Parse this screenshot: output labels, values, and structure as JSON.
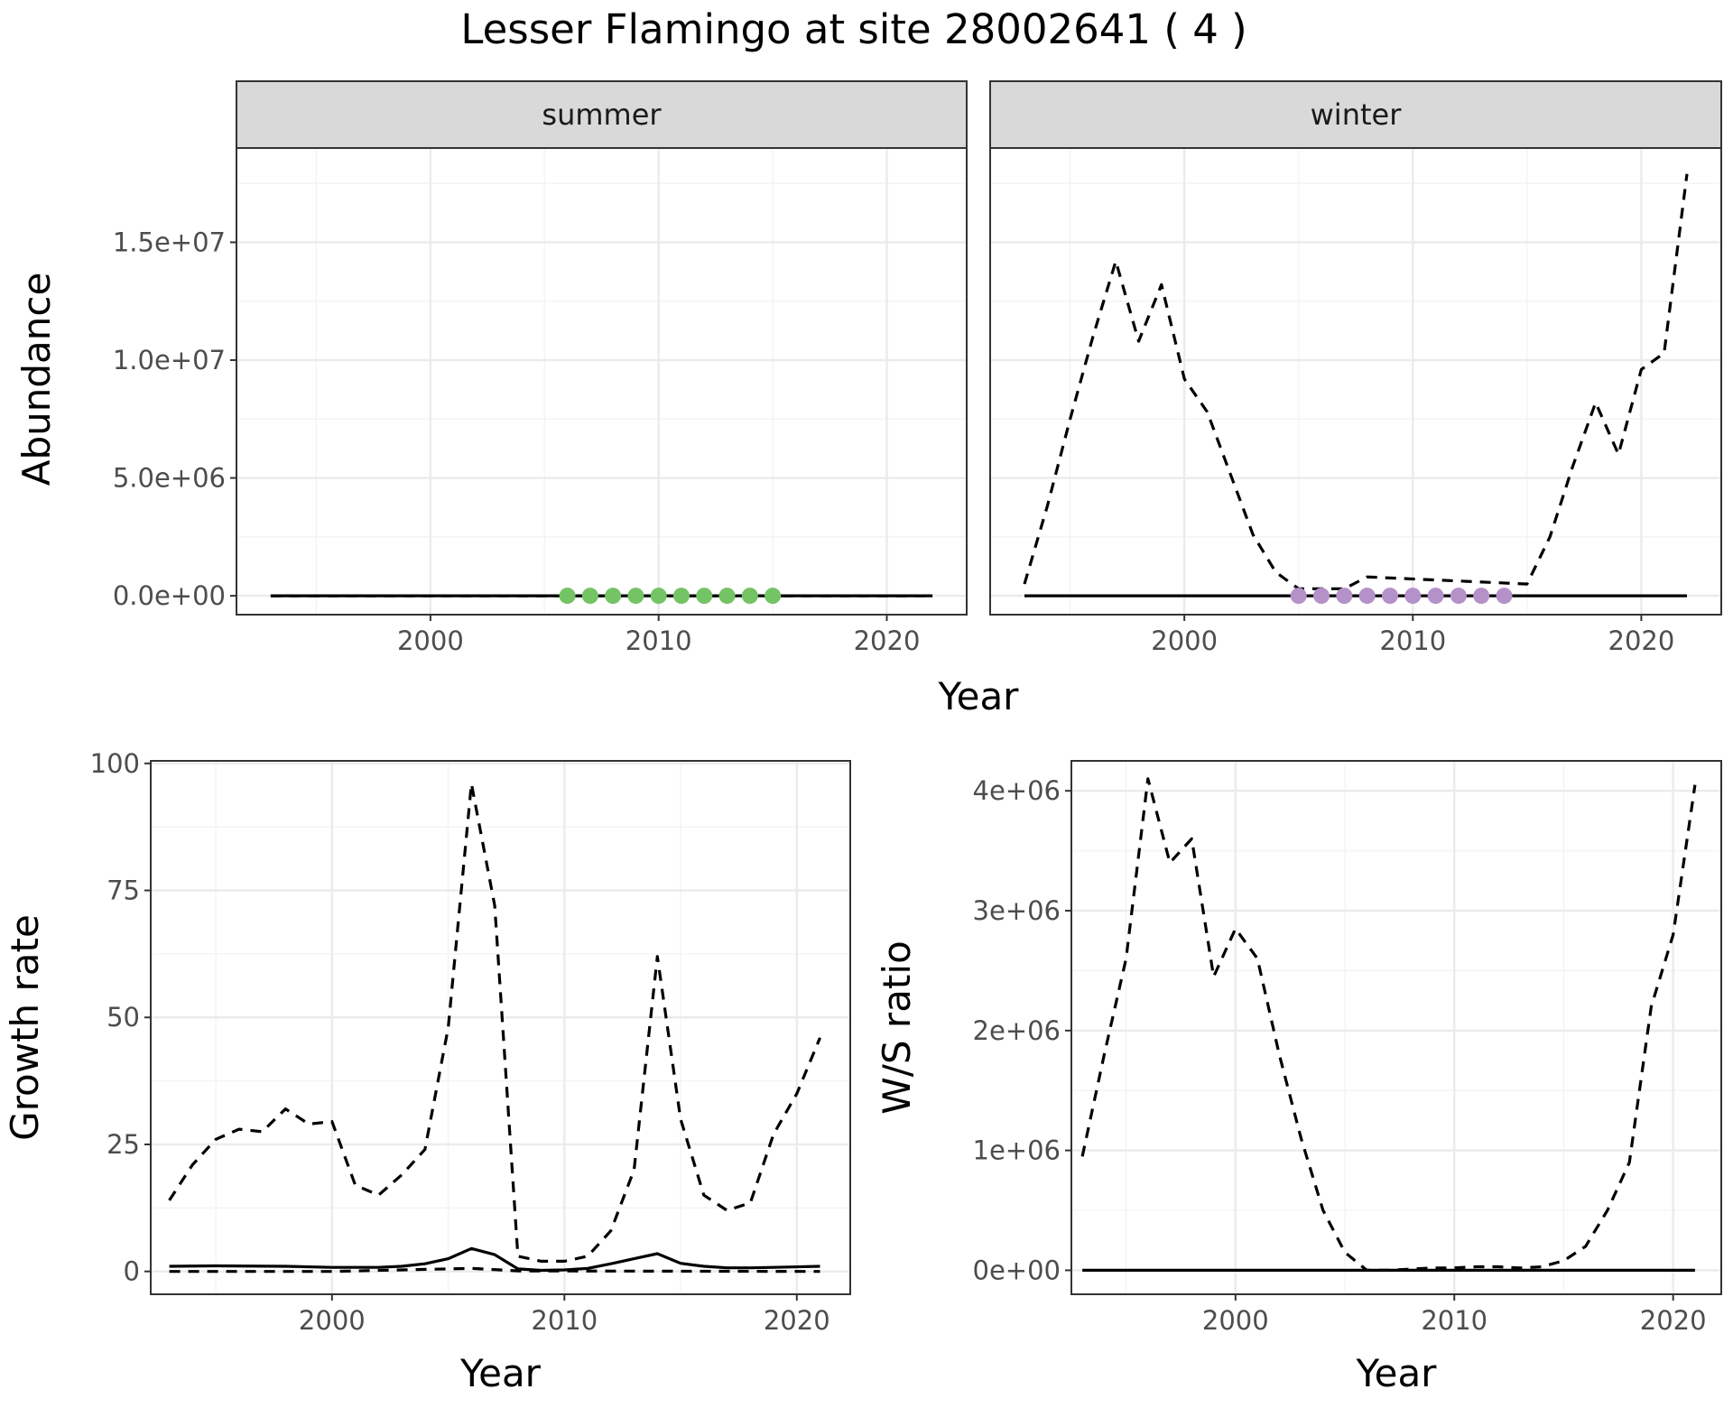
{
  "figure": {
    "title": "Lesser Flamingo at site 28002641 ( 4 )"
  },
  "chart_data": [
    {
      "type": "line",
      "panel": "summer",
      "strip": "summer",
      "xlabel": "Year",
      "ylabel": "Abundance",
      "xlim": [
        1991.5,
        2023.5
      ],
      "ylim": [
        -800000,
        19000000
      ],
      "xticks": [
        2000,
        2010,
        2020
      ],
      "xtick_labels": [
        "2000",
        "2010",
        "2020"
      ],
      "yticks": [
        0,
        5000000,
        10000000,
        15000000
      ],
      "ytick_labels": [
        "0.0e+00",
        "5.0e+06",
        "1.0e+07",
        "1.5e+07"
      ],
      "series": [
        {
          "style": "dashed",
          "x": [
            1993,
            2022
          ],
          "y": [
            0,
            0
          ]
        },
        {
          "style": "solid",
          "x": [
            1993,
            2022
          ],
          "y": [
            0,
            0
          ]
        }
      ],
      "points": {
        "color": "#74c365",
        "x": [
          2006,
          2007,
          2008,
          2009,
          2010,
          2011,
          2012,
          2013,
          2014,
          2015
        ],
        "y": [
          0,
          0,
          0,
          0,
          0,
          0,
          0,
          0,
          0,
          0
        ]
      }
    },
    {
      "type": "line",
      "panel": "winter",
      "strip": "winter",
      "xlabel": "Year",
      "ylabel": "Abundance",
      "xlim": [
        1991.5,
        2023.5
      ],
      "ylim": [
        -800000,
        19000000
      ],
      "xticks": [
        2000,
        2010,
        2020
      ],
      "xtick_labels": [
        "2000",
        "2010",
        "2020"
      ],
      "yticks": [
        0,
        5000000,
        10000000,
        15000000
      ],
      "ytick_labels": [
        "0.0e+00",
        "5.0e+06",
        "1.0e+07",
        "1.5e+07"
      ],
      "series": [
        {
          "style": "dashed",
          "x": [
            1993,
            1994,
            1995,
            1996,
            1997,
            1998,
            1999,
            2000,
            2001,
            2002,
            2003,
            2004,
            2005,
            2006,
            2007,
            2008,
            2015,
            2016,
            2017,
            2018,
            2019,
            2020,
            2021,
            2022
          ],
          "y": [
            500000,
            3800000,
            7500000,
            11000000,
            14200000,
            10800000,
            13200000,
            9200000,
            7800000,
            5200000,
            2600000,
            1000000,
            300000,
            300000,
            300000,
            800000,
            500000,
            2500000,
            5500000,
            8200000,
            6000000,
            9600000,
            10300000,
            17900000
          ]
        },
        {
          "style": "solid",
          "x": [
            1993,
            2022
          ],
          "y": [
            0,
            0
          ]
        }
      ],
      "points": {
        "color": "#b491c8",
        "x": [
          2005,
          2006,
          2007,
          2008,
          2009,
          2010,
          2011,
          2012,
          2013,
          2014
        ],
        "y": [
          0,
          0,
          0,
          0,
          0,
          0,
          0,
          0,
          0,
          0
        ]
      }
    },
    {
      "type": "line",
      "panel": "growth",
      "xlabel": "Year",
      "ylabel": "Growth rate",
      "xlim": [
        1992.2,
        2022.3
      ],
      "ylim": [
        -4.5,
        100.5
      ],
      "xticks": [
        2000,
        2010,
        2020
      ],
      "xtick_labels": [
        "2000",
        "2010",
        "2020"
      ],
      "yticks": [
        0,
        25,
        50,
        75,
        100
      ],
      "ytick_labels": [
        "0",
        "25",
        "50",
        "75",
        "100"
      ],
      "series": [
        {
          "style": "dashed",
          "x": [
            1993,
            1994,
            1995,
            1996,
            1997,
            1998,
            1999,
            2000,
            2001,
            2002,
            2003,
            2004,
            2005,
            2006,
            2007,
            2008,
            2009,
            2010,
            2011,
            2012,
            2013,
            2014,
            2015,
            2016,
            2017,
            2018,
            2019,
            2020,
            2021
          ],
          "y": [
            14,
            21,
            26,
            28,
            27.5,
            32,
            29,
            29.5,
            17,
            15,
            19,
            24,
            48,
            96,
            72,
            3,
            2,
            2,
            3,
            8,
            20,
            62,
            30,
            15,
            12,
            13.5,
            27,
            35,
            46
          ]
        },
        {
          "style": "dashed",
          "x": [
            1993,
            2000,
            2006,
            2008,
            2021
          ],
          "y": [
            0,
            0,
            0.6,
            0.1,
            0
          ]
        },
        {
          "style": "solid",
          "x": [
            1993,
            1995,
            1998,
            2000,
            2002,
            2003,
            2004,
            2005,
            2006,
            2007,
            2008,
            2009,
            2010,
            2011,
            2012,
            2013,
            2014,
            2015,
            2016,
            2017,
            2018,
            2019,
            2021
          ],
          "y": [
            1,
            1.1,
            1,
            0.8,
            0.8,
            1,
            1.5,
            2.5,
            4.5,
            3.3,
            0.5,
            0.2,
            0.3,
            0.6,
            1.5,
            2.5,
            3.5,
            1.6,
            1,
            0.7,
            0.7,
            0.8,
            1
          ]
        }
      ]
    },
    {
      "type": "line",
      "panel": "ratio",
      "xlabel": "Year",
      "ylabel": "W/S ratio",
      "xlim": [
        1992.5,
        2022.2
      ],
      "ylim": [
        -200000,
        4250000
      ],
      "xticks": [
        2000,
        2010,
        2020
      ],
      "xtick_labels": [
        "2000",
        "2010",
        "2020"
      ],
      "yticks": [
        0,
        1000000,
        2000000,
        3000000,
        4000000
      ],
      "ytick_labels": [
        "0e+00",
        "1e+06",
        "2e+06",
        "3e+06",
        "4e+06"
      ],
      "series": [
        {
          "style": "dashed",
          "x": [
            1993,
            1994,
            1995,
            1996,
            1997,
            1998,
            1999,
            2000,
            2001,
            2002,
            2003,
            2004,
            2005,
            2006,
            2007,
            2008,
            2009,
            2010,
            2011,
            2012,
            2013,
            2014,
            2015,
            2016,
            2017,
            2018,
            2019,
            2020,
            2021
          ],
          "y": [
            950000,
            1800000,
            2600000,
            4100000,
            3400000,
            3600000,
            2450000,
            2850000,
            2600000,
            1800000,
            1100000,
            500000,
            150000,
            0,
            0,
            10000,
            20000,
            20000,
            30000,
            30000,
            20000,
            30000,
            80000,
            200000,
            500000,
            900000,
            2200000,
            2800000,
            4050000
          ]
        },
        {
          "style": "solid",
          "x": [
            1993,
            2021
          ],
          "y": [
            0,
            0
          ]
        }
      ]
    }
  ]
}
